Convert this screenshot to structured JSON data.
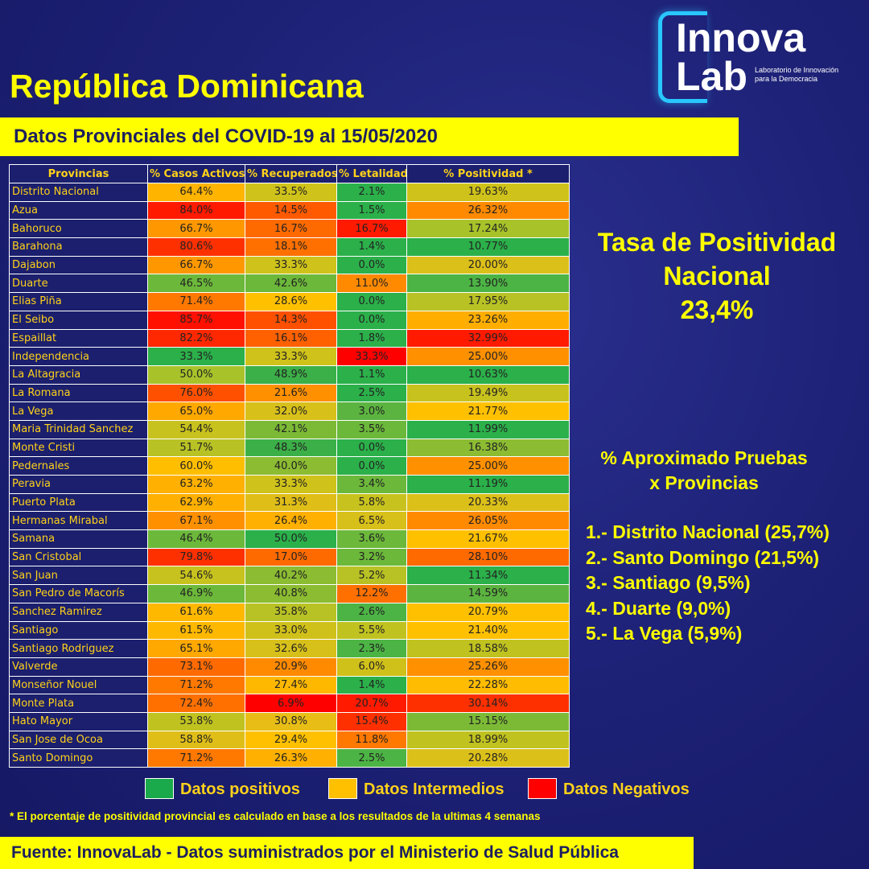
{
  "logo": {
    "line1": "Innova",
    "line2": "Lab",
    "tagline1": "Laboratorio de Innovación",
    "tagline2": "para la Democracia"
  },
  "title": "República Dominicana",
  "subtitle": "Datos Provinciales del COVID-19 al 15/05/2020",
  "colors": {
    "background": "#1e2278",
    "yellow": "#ffff00",
    "green": "#1aaa4b",
    "orange": "#ffb000",
    "red": "#ff0000"
  },
  "table": {
    "headers": [
      "Provincias",
      "% Casos Activos",
      "% Recuperados",
      "% Letalidad",
      "% Positividad *"
    ],
    "rows": [
      {
        "provincia": "Distrito Nacional",
        "activos": "64.4%",
        "recuperados": "33.5%",
        "letalidad": "2.1%",
        "positividad": "19.63%",
        "colors": [
          "#ffb400",
          "#cfc21a",
          "#2bb04a",
          "#cfc21a"
        ]
      },
      {
        "provincia": "Azua",
        "activos": "84.0%",
        "recuperados": "14.5%",
        "letalidad": "1.5%",
        "positividad": "26.32%",
        "colors": [
          "#ff1a00",
          "#ff5a00",
          "#2bb04a",
          "#ff8a00"
        ]
      },
      {
        "provincia": "Bahoruco",
        "activos": "66.7%",
        "recuperados": "16.7%",
        "letalidad": "16.7%",
        "positividad": "17.24%",
        "colors": [
          "#ff9800",
          "#ff6a00",
          "#ff1a00",
          "#a8c22a"
        ]
      },
      {
        "provincia": "Barahona",
        "activos": "80.6%",
        "recuperados": "18.1%",
        "letalidad": "1.4%",
        "positividad": "10.77%",
        "colors": [
          "#ff3000",
          "#ff7000",
          "#2bb04a",
          "#2bb04a"
        ]
      },
      {
        "provincia": "Dajabon",
        "activos": "66.7%",
        "recuperados": "33.3%",
        "letalidad": "0.0%",
        "positividad": "20.00%",
        "colors": [
          "#ff9800",
          "#cfc21a",
          "#2bb04a",
          "#dcc01a"
        ]
      },
      {
        "provincia": "Duarte",
        "activos": "46.5%",
        "recuperados": "42.6%",
        "letalidad": "11.0%",
        "positividad": "13.90%",
        "colors": [
          "#6cb83a",
          "#6cb83a",
          "#ff8a00",
          "#4cb444"
        ]
      },
      {
        "provincia": "Elias Piña",
        "activos": "71.4%",
        "recuperados": "28.6%",
        "letalidad": "0.0%",
        "positividad": "17.95%",
        "colors": [
          "#ff7800",
          "#ffc000",
          "#2bb04a",
          "#b8c224"
        ]
      },
      {
        "provincia": "El Seibo",
        "activos": "85.7%",
        "recuperados": "14.3%",
        "letalidad": "0.0%",
        "positividad": "23.26%",
        "colors": [
          "#ff1000",
          "#ff5000",
          "#2bb04a",
          "#ffae00"
        ]
      },
      {
        "provincia": "Espaillat",
        "activos": "82.2%",
        "recuperados": "16.1%",
        "letalidad": "1.8%",
        "positividad": "32.99%",
        "colors": [
          "#ff2800",
          "#ff6000",
          "#2bb04a",
          "#ff1a00"
        ]
      },
      {
        "provincia": "Independencia",
        "activos": "33.3%",
        "recuperados": "33.3%",
        "letalidad": "33.3%",
        "positividad": "25.00%",
        "colors": [
          "#2bb04a",
          "#cfc21a",
          "#ff0000",
          "#ff9000"
        ]
      },
      {
        "provincia": "La Altagracia",
        "activos": "50.0%",
        "recuperados": "48.9%",
        "letalidad": "1.1%",
        "positividad": "10.63%",
        "colors": [
          "#a8c22a",
          "#3cb048",
          "#2bb04a",
          "#2bb04a"
        ]
      },
      {
        "provincia": "La Romana",
        "activos": "76.0%",
        "recuperados": "21.6%",
        "letalidad": "2.5%",
        "positividad": "19.49%",
        "colors": [
          "#ff5000",
          "#ff9000",
          "#2bb04a",
          "#c8c21e"
        ]
      },
      {
        "provincia": "La Vega",
        "activos": "65.0%",
        "recuperados": "32.0%",
        "letalidad": "3.0%",
        "positividad": "21.77%",
        "colors": [
          "#ffa800",
          "#d8c01a",
          "#5cb440",
          "#ffc000"
        ]
      },
      {
        "provincia": "Maria Trinidad Sanchez",
        "activos": "54.4%",
        "recuperados": "42.1%",
        "letalidad": "3.5%",
        "positividad": "11.99%",
        "colors": [
          "#c8c21e",
          "#7cba36",
          "#6cb83a",
          "#2bb04a"
        ]
      },
      {
        "provincia": "Monte Cristi",
        "activos": "51.7%",
        "recuperados": "48.3%",
        "letalidad": "0.0%",
        "positividad": "16.38%",
        "colors": [
          "#b8c224",
          "#3cb048",
          "#2bb04a",
          "#8cbc32"
        ]
      },
      {
        "provincia": "Pedernales",
        "activos": "60.0%",
        "recuperados": "40.0%",
        "letalidad": "0.0%",
        "positividad": "25.00%",
        "colors": [
          "#ffbe00",
          "#8cbc32",
          "#2bb04a",
          "#ff9000"
        ]
      },
      {
        "provincia": "Peravia",
        "activos": "63.2%",
        "recuperados": "33.3%",
        "letalidad": "3.4%",
        "positividad": "11.19%",
        "colors": [
          "#ffb000",
          "#cfc21a",
          "#6cb83a",
          "#2bb04a"
        ]
      },
      {
        "provincia": "Puerto Plata",
        "activos": "62.9%",
        "recuperados": "31.3%",
        "letalidad": "5.8%",
        "positividad": "20.33%",
        "colors": [
          "#ffb000",
          "#e0be18",
          "#c8c21e",
          "#dcc01a"
        ]
      },
      {
        "provincia": "Hermanas Mirabal",
        "activos": "67.1%",
        "recuperados": "26.4%",
        "letalidad": "6.5%",
        "positividad": "26.05%",
        "colors": [
          "#ff9000",
          "#ffb000",
          "#d8c01a",
          "#ff8a00"
        ]
      },
      {
        "provincia": "Samana",
        "activos": "46.4%",
        "recuperados": "50.0%",
        "letalidad": "3.6%",
        "positividad": "21.67%",
        "colors": [
          "#6cb83a",
          "#2bb04a",
          "#6cb83a",
          "#ffc000"
        ]
      },
      {
        "provincia": "San Cristobal",
        "activos": "79.8%",
        "recuperados": "17.0%",
        "letalidad": "3.2%",
        "positividad": "28.10%",
        "colors": [
          "#ff3000",
          "#ff6a00",
          "#6cb83a",
          "#ff6a00"
        ]
      },
      {
        "provincia": "San Juan",
        "activos": "54.6%",
        "recuperados": "40.2%",
        "letalidad": "5.2%",
        "positividad": "11.34%",
        "colors": [
          "#c8c21e",
          "#8cbc32",
          "#b8c224",
          "#2bb04a"
        ]
      },
      {
        "provincia": "San Pedro de Macorís",
        "activos": "46.9%",
        "recuperados": "40.8%",
        "letalidad": "12.2%",
        "positividad": "14.59%",
        "colors": [
          "#6cb83a",
          "#8cbc32",
          "#ff7000",
          "#5cb440"
        ]
      },
      {
        "provincia": "Sanchez Ramirez",
        "activos": "61.6%",
        "recuperados": "35.8%",
        "letalidad": "2.6%",
        "positividad": "20.79%",
        "colors": [
          "#ffb800",
          "#b8c224",
          "#4cb444",
          "#ffc000"
        ]
      },
      {
        "provincia": "Santiago",
        "activos": "61.5%",
        "recuperados": "33.0%",
        "letalidad": "5.5%",
        "positividad": "21.40%",
        "colors": [
          "#ffb800",
          "#d0c01a",
          "#c0c220",
          "#ffc000"
        ]
      },
      {
        "provincia": "Santiago Rodriguez",
        "activos": "65.1%",
        "recuperados": "32.6%",
        "letalidad": "2.3%",
        "positividad": "18.58%",
        "colors": [
          "#ffa800",
          "#d8c01a",
          "#4cb444",
          "#c0c220"
        ]
      },
      {
        "provincia": "Valverde",
        "activos": "73.1%",
        "recuperados": "20.9%",
        "letalidad": "6.0%",
        "positividad": "25.26%",
        "colors": [
          "#ff6a00",
          "#ff8a00",
          "#d0c01a",
          "#ff9000"
        ]
      },
      {
        "provincia": "Monseñor Nouel",
        "activos": "71.2%",
        "recuperados": "27.4%",
        "letalidad": "1.4%",
        "positividad": "22.28%",
        "colors": [
          "#ff7800",
          "#ffb800",
          "#2bb04a",
          "#ffbc00"
        ]
      },
      {
        "provincia": "Monte Plata",
        "activos": "72.4%",
        "recuperados": "6.9%",
        "letalidad": "20.7%",
        "positividad": "30.14%",
        "colors": [
          "#ff7000",
          "#ff0000",
          "#ff1a00",
          "#ff3000"
        ]
      },
      {
        "provincia": "Hato Mayor",
        "activos": "53.8%",
        "recuperados": "30.8%",
        "letalidad": "15.4%",
        "positividad": "15.15%",
        "colors": [
          "#c0c220",
          "#e8be16",
          "#ff3000",
          "#7cba36"
        ]
      },
      {
        "provincia": "San Jose de Ocoa",
        "activos": "58.8%",
        "recuperados": "29.4%",
        "letalidad": "11.8%",
        "positividad": "18.99%",
        "colors": [
          "#e0be18",
          "#ffc000",
          "#ff7800",
          "#c0c220"
        ]
      },
      {
        "provincia": "Santo Domingo",
        "activos": "71.2%",
        "recuperados": "26.3%",
        "letalidad": "2.5%",
        "positividad": "20.28%",
        "colors": [
          "#ff7800",
          "#ffb000",
          "#4cb444",
          "#dcc01a"
        ]
      }
    ]
  },
  "tasa": {
    "line1": "Tasa de Positividad",
    "line2": "Nacional",
    "value": "23,4%"
  },
  "pruebas": {
    "title1": "% Aproximado Pruebas",
    "title2": "x Provincias",
    "items": [
      "1.- Distrito Nacional (25,7%)",
      "2.- Santo Domingo (21,5%)",
      "3.- Santiago (9,5%)",
      "4.- Duarte (9,0%)",
      "5.- La Vega (5,9%)"
    ]
  },
  "legend": {
    "items": [
      {
        "label": "Datos positivos",
        "color": "#1aaa4b"
      },
      {
        "label": "Datos Intermedios",
        "color": "#ffc000"
      },
      {
        "label": "Datos Negativos",
        "color": "#ff0000"
      }
    ]
  },
  "footnote": "* El porcentaje de positividad provincial es calculado en base a los resultados de la ultimas 4 semanas",
  "source": "Fuente: InnovaLab - Datos suministrados por el Ministerio de Salud Pública"
}
